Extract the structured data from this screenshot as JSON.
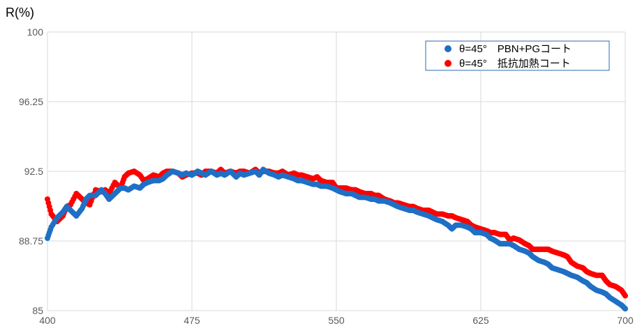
{
  "chart_data": {
    "type": "scatter",
    "title": "",
    "ylabel": "R(%)",
    "xlabel": "",
    "xlim": [
      400,
      700
    ],
    "ylim": [
      85,
      100
    ],
    "x_ticks": [
      "400",
      "475",
      "550",
      "625",
      "700"
    ],
    "y_ticks": [
      "100",
      "96.25",
      "92.5",
      "88.75",
      "85"
    ],
    "grid": "on",
    "legend_position": "top-right",
    "series": [
      {
        "name": "θ=45°　PBN+PGコート",
        "color": "#1f6fc5",
        "points": [
          [
            400,
            88.9
          ],
          [
            402,
            89.5
          ],
          [
            405,
            90.0
          ],
          [
            408,
            90.3
          ],
          [
            410,
            90.6
          ],
          [
            412,
            90.4
          ],
          [
            415,
            90.1
          ],
          [
            418,
            90.5
          ],
          [
            420,
            91.0
          ],
          [
            422,
            91.2
          ],
          [
            425,
            91.2
          ],
          [
            428,
            91.5
          ],
          [
            430,
            91.3
          ],
          [
            432,
            91.0
          ],
          [
            435,
            91.3
          ],
          [
            438,
            91.6
          ],
          [
            440,
            91.6
          ],
          [
            442,
            91.5
          ],
          [
            445,
            91.7
          ],
          [
            448,
            91.6
          ],
          [
            450,
            91.8
          ],
          [
            452,
            91.9
          ],
          [
            455,
            92.0
          ],
          [
            458,
            92.0
          ],
          [
            460,
            92.1
          ],
          [
            462,
            92.3
          ],
          [
            465,
            92.5
          ],
          [
            468,
            92.4
          ],
          [
            470,
            92.3
          ],
          [
            472,
            92.4
          ],
          [
            475,
            92.3
          ],
          [
            478,
            92.5
          ],
          [
            480,
            92.4
          ],
          [
            482,
            92.3
          ],
          [
            485,
            92.5
          ],
          [
            488,
            92.3
          ],
          [
            490,
            92.4
          ],
          [
            492,
            92.3
          ],
          [
            495,
            92.5
          ],
          [
            498,
            92.2
          ],
          [
            500,
            92.4
          ],
          [
            502,
            92.3
          ],
          [
            505,
            92.4
          ],
          [
            508,
            92.5
          ],
          [
            510,
            92.3
          ],
          [
            512,
            92.6
          ],
          [
            515,
            92.4
          ],
          [
            518,
            92.3
          ],
          [
            520,
            92.2
          ],
          [
            522,
            92.3
          ],
          [
            525,
            92.2
          ],
          [
            528,
            92.1
          ],
          [
            530,
            92.0
          ],
          [
            532,
            92.0
          ],
          [
            535,
            91.9
          ],
          [
            538,
            91.8
          ],
          [
            540,
            91.8
          ],
          [
            542,
            91.7
          ],
          [
            545,
            91.7
          ],
          [
            548,
            91.6
          ],
          [
            550,
            91.5
          ],
          [
            552,
            91.4
          ],
          [
            555,
            91.3
          ],
          [
            558,
            91.3
          ],
          [
            560,
            91.2
          ],
          [
            562,
            91.1
          ],
          [
            565,
            91.1
          ],
          [
            568,
            91.0
          ],
          [
            570,
            91.0
          ],
          [
            572,
            90.9
          ],
          [
            575,
            90.9
          ],
          [
            578,
            90.8
          ],
          [
            580,
            90.7
          ],
          [
            582,
            90.6
          ],
          [
            585,
            90.5
          ],
          [
            588,
            90.4
          ],
          [
            590,
            90.4
          ],
          [
            592,
            90.3
          ],
          [
            595,
            90.2
          ],
          [
            598,
            90.1
          ],
          [
            600,
            90.0
          ],
          [
            602,
            89.9
          ],
          [
            605,
            89.8
          ],
          [
            608,
            89.6
          ],
          [
            610,
            89.4
          ],
          [
            612,
            89.6
          ],
          [
            615,
            89.6
          ],
          [
            618,
            89.5
          ],
          [
            620,
            89.4
          ],
          [
            622,
            89.2
          ],
          [
            625,
            89.2
          ],
          [
            628,
            89.1
          ],
          [
            630,
            88.9
          ],
          [
            632,
            88.8
          ],
          [
            635,
            88.6
          ],
          [
            638,
            88.6
          ],
          [
            640,
            88.6
          ],
          [
            642,
            88.5
          ],
          [
            645,
            88.3
          ],
          [
            648,
            88.2
          ],
          [
            650,
            88.1
          ],
          [
            652,
            87.9
          ],
          [
            655,
            87.7
          ],
          [
            658,
            87.6
          ],
          [
            660,
            87.5
          ],
          [
            662,
            87.3
          ],
          [
            665,
            87.2
          ],
          [
            668,
            87.1
          ],
          [
            670,
            87.0
          ],
          [
            672,
            86.9
          ],
          [
            675,
            86.8
          ],
          [
            678,
            86.6
          ],
          [
            680,
            86.5
          ],
          [
            682,
            86.3
          ],
          [
            685,
            86.1
          ],
          [
            688,
            86.0
          ],
          [
            690,
            85.9
          ],
          [
            692,
            85.7
          ],
          [
            695,
            85.5
          ],
          [
            698,
            85.3
          ],
          [
            700,
            85.1
          ]
        ]
      },
      {
        "name": "θ=45°　抵抗加熱コート",
        "color": "#ff0000",
        "points": [
          [
            400,
            91.0
          ],
          [
            402,
            90.2
          ],
          [
            405,
            89.8
          ],
          [
            408,
            90.1
          ],
          [
            410,
            90.6
          ],
          [
            412,
            90.7
          ],
          [
            415,
            91.3
          ],
          [
            418,
            91.0
          ],
          [
            420,
            90.8
          ],
          [
            422,
            90.7
          ],
          [
            425,
            91.5
          ],
          [
            428,
            91.4
          ],
          [
            430,
            91.5
          ],
          [
            432,
            91.3
          ],
          [
            435,
            91.9
          ],
          [
            438,
            91.6
          ],
          [
            440,
            92.2
          ],
          [
            442,
            92.4
          ],
          [
            445,
            92.5
          ],
          [
            448,
            92.3
          ],
          [
            450,
            92.0
          ],
          [
            452,
            92.1
          ],
          [
            455,
            92.3
          ],
          [
            458,
            92.2
          ],
          [
            460,
            92.4
          ],
          [
            462,
            92.5
          ],
          [
            465,
            92.5
          ],
          [
            468,
            92.4
          ],
          [
            470,
            92.2
          ],
          [
            472,
            92.3
          ],
          [
            475,
            92.4
          ],
          [
            478,
            92.4
          ],
          [
            480,
            92.3
          ],
          [
            482,
            92.5
          ],
          [
            485,
            92.5
          ],
          [
            488,
            92.4
          ],
          [
            490,
            92.6
          ],
          [
            492,
            92.4
          ],
          [
            495,
            92.5
          ],
          [
            498,
            92.4
          ],
          [
            500,
            92.5
          ],
          [
            502,
            92.5
          ],
          [
            505,
            92.4
          ],
          [
            508,
            92.6
          ],
          [
            510,
            92.4
          ],
          [
            512,
            92.5
          ],
          [
            515,
            92.5
          ],
          [
            518,
            92.4
          ],
          [
            520,
            92.4
          ],
          [
            522,
            92.5
          ],
          [
            525,
            92.3
          ],
          [
            528,
            92.4
          ],
          [
            530,
            92.3
          ],
          [
            532,
            92.3
          ],
          [
            535,
            92.2
          ],
          [
            538,
            92.1
          ],
          [
            540,
            92.2
          ],
          [
            542,
            92.0
          ],
          [
            545,
            91.9
          ],
          [
            548,
            91.9
          ],
          [
            550,
            91.6
          ],
          [
            552,
            91.6
          ],
          [
            555,
            91.6
          ],
          [
            558,
            91.5
          ],
          [
            560,
            91.5
          ],
          [
            562,
            91.4
          ],
          [
            565,
            91.3
          ],
          [
            568,
            91.3
          ],
          [
            570,
            91.2
          ],
          [
            572,
            91.2
          ],
          [
            575,
            91.0
          ],
          [
            578,
            90.9
          ],
          [
            580,
            90.8
          ],
          [
            582,
            90.8
          ],
          [
            585,
            90.7
          ],
          [
            588,
            90.6
          ],
          [
            590,
            90.6
          ],
          [
            592,
            90.5
          ],
          [
            595,
            90.4
          ],
          [
            598,
            90.4
          ],
          [
            600,
            90.3
          ],
          [
            602,
            90.2
          ],
          [
            605,
            90.2
          ],
          [
            608,
            90.1
          ],
          [
            610,
            90.1
          ],
          [
            612,
            90.0
          ],
          [
            615,
            89.9
          ],
          [
            618,
            89.8
          ],
          [
            620,
            89.6
          ],
          [
            622,
            89.5
          ],
          [
            625,
            89.4
          ],
          [
            628,
            89.3
          ],
          [
            630,
            89.2
          ],
          [
            632,
            89.2
          ],
          [
            635,
            89.1
          ],
          [
            638,
            89.1
          ],
          [
            640,
            88.8
          ],
          [
            642,
            88.9
          ],
          [
            645,
            88.8
          ],
          [
            648,
            88.6
          ],
          [
            650,
            88.5
          ],
          [
            652,
            88.3
          ],
          [
            655,
            88.3
          ],
          [
            658,
            88.3
          ],
          [
            660,
            88.3
          ],
          [
            662,
            88.2
          ],
          [
            665,
            88.1
          ],
          [
            668,
            88.0
          ],
          [
            670,
            87.9
          ],
          [
            672,
            87.6
          ],
          [
            675,
            87.4
          ],
          [
            678,
            87.3
          ],
          [
            680,
            87.1
          ],
          [
            682,
            87.0
          ],
          [
            685,
            86.9
          ],
          [
            688,
            86.9
          ],
          [
            690,
            86.6
          ],
          [
            692,
            86.4
          ],
          [
            695,
            86.3
          ],
          [
            698,
            86.1
          ],
          [
            700,
            85.8
          ]
        ]
      }
    ]
  }
}
